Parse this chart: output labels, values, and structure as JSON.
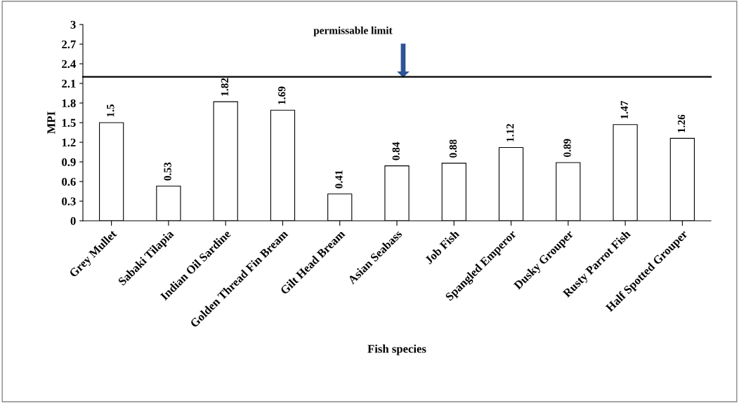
{
  "chart_data": {
    "type": "bar",
    "xlabel": "Fish species",
    "ylabel": "MPI",
    "categories": [
      "Grey Mullet",
      "Sabaki Tilapia",
      "Indian Oil Sardine",
      "Golden Thread Fin Bream",
      "Gilt Head Bream",
      "Asian Seabass",
      "Job Fish",
      "Spangled Emperor",
      "Dusky Grouper",
      "Rusty Parrot Fish",
      "Half Spotted Grouper"
    ],
    "values": [
      1.5,
      0.53,
      1.82,
      1.69,
      0.41,
      0.84,
      0.88,
      1.12,
      0.89,
      1.47,
      1.26
    ],
    "color": "#ffffff",
    "data_labels": true,
    "ylim": [
      0,
      3
    ],
    "yticks": [
      0,
      0.3,
      0.6,
      0.9,
      1.2,
      1.5,
      1.8,
      2.1,
      2.4,
      2.7,
      3
    ],
    "ref_lines": [
      {
        "axis": "y",
        "value": 2.2,
        "label": "permissable limit",
        "color": "#000000"
      }
    ],
    "grid": false,
    "legend": false
  }
}
